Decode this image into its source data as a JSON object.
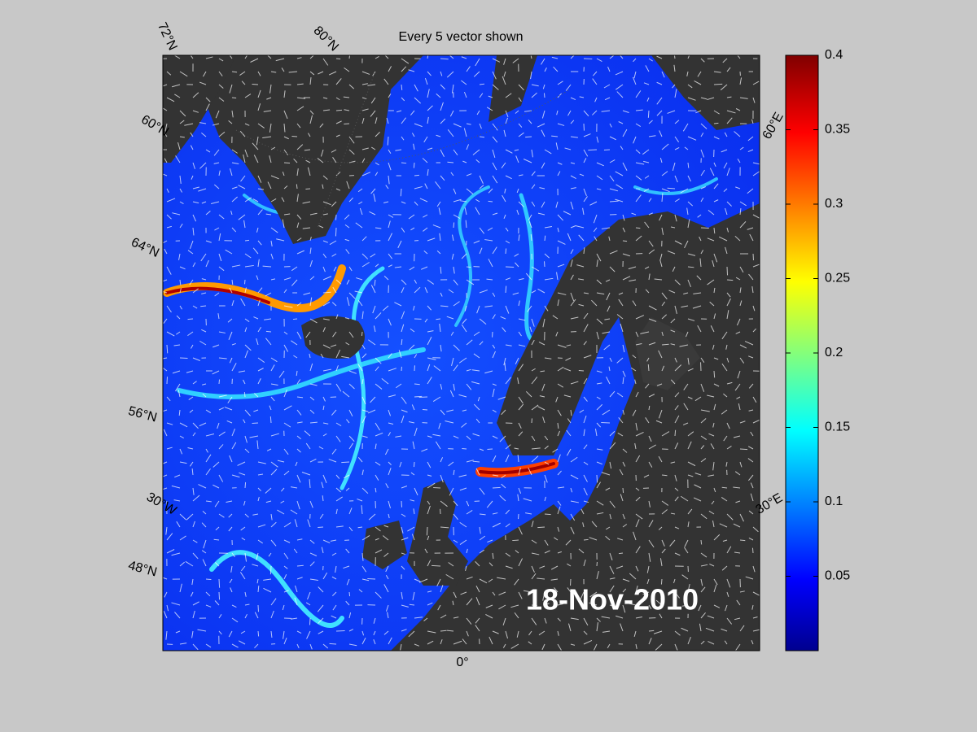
{
  "header": {
    "title": "Every 5 vector shown"
  },
  "map": {
    "date": "18-Nov-2010",
    "lat_labels": [
      "72°N",
      "80°N",
      "60°N",
      "64°N",
      "56°N",
      "48°N"
    ],
    "lon_labels": [
      "30°W",
      "0°",
      "30°E",
      "60°E"
    ]
  },
  "colorbar": {
    "lim": [
      0,
      0.4
    ],
    "ticks": [
      0.05,
      0.1,
      0.15,
      0.2,
      0.25,
      0.3,
      0.35,
      0.4
    ]
  }
}
